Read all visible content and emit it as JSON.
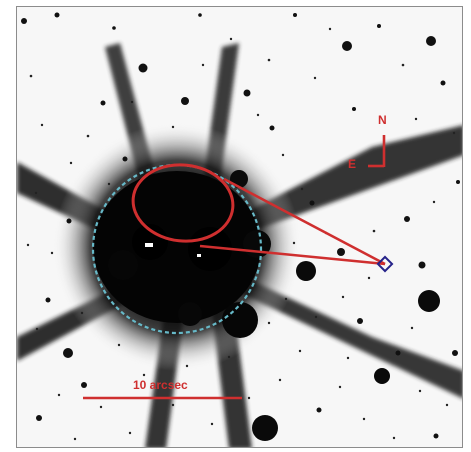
{
  "image": {
    "scale_bar_label": "10 arcsec",
    "compass": {
      "north_label": "N",
      "east_label": "E"
    },
    "colors": {
      "background": "#f7f7f7",
      "core": "#050505",
      "marker_red": "#cf2f2f",
      "dashed_circle": "#67b9c8",
      "diamond": "#26238a"
    },
    "icons": {
      "compass": "compass-icon",
      "marker": "diamond-marker-icon"
    }
  }
}
